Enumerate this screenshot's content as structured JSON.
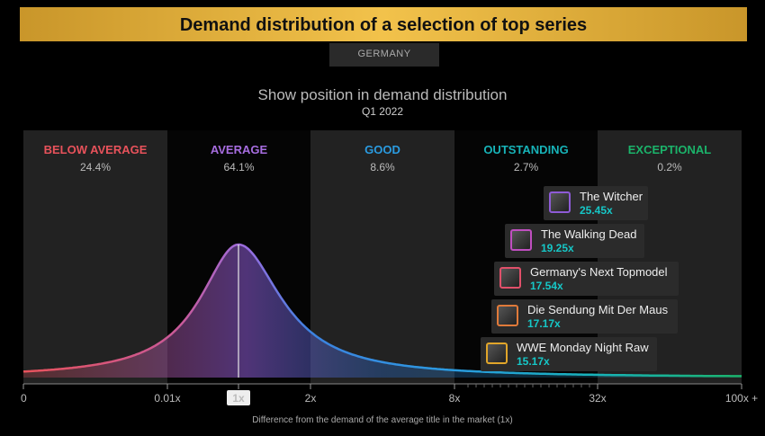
{
  "header": {
    "title": "Demand distribution of a selection of top series",
    "country": "GERMANY"
  },
  "chart_data": {
    "type": "area",
    "title": "Show position in demand distribution",
    "subtitle": "Q1 2022",
    "xlabel": "Difference from the demand of the average title in the market (1x)",
    "x_ticks": [
      "0",
      "0.01x",
      "1x",
      "2x",
      "8x",
      "32x",
      "100x +"
    ],
    "highlight_tick": "1x",
    "categories": [
      {
        "name": "BELOW AVERAGE",
        "percent": "24.4%",
        "color": "#e8525b"
      },
      {
        "name": "AVERAGE",
        "percent": "64.1%",
        "color": "#a76de0"
      },
      {
        "name": "GOOD",
        "percent": "8.6%",
        "color": "#2a9be0"
      },
      {
        "name": "OUTSTANDING",
        "percent": "2.7%",
        "color": "#17b3b8"
      },
      {
        "name": "EXCEPTIONAL",
        "percent": "0.2%",
        "color": "#1bb36a"
      }
    ],
    "series": [
      {
        "name": "The Witcher",
        "value": "25.45x",
        "border": "#8e5bd6"
      },
      {
        "name": "The Walking Dead",
        "value": "19.25x",
        "border": "#c04fc0"
      },
      {
        "name": "Germany's Next Topmodel",
        "value": "17.54x",
        "border": "#e0506a"
      },
      {
        "name": "Die Sendung Mit Der Maus",
        "value": "17.17x",
        "border": "#e07a3a"
      },
      {
        "name": "WWE Monday Night Raw",
        "value": "15.17x",
        "border": "#e0a52a"
      }
    ]
  }
}
